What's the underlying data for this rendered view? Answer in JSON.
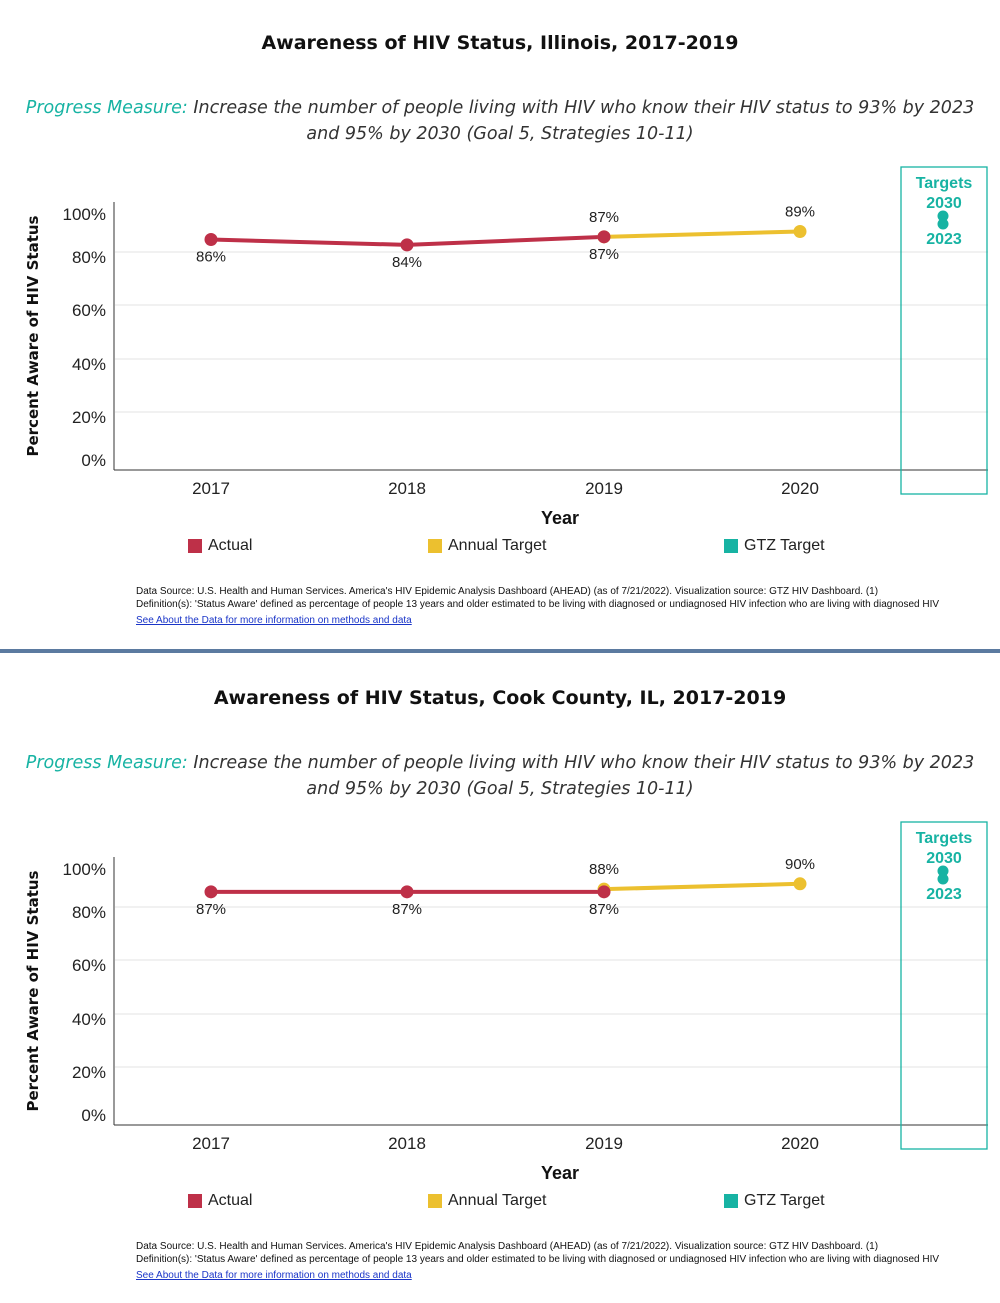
{
  "legend": [
    {
      "label": "Actual",
      "color": "#be3048"
    },
    {
      "label": "Annual Target",
      "color": "#ecc02f"
    },
    {
      "label": "GTZ Target",
      "color": "#17b3a3"
    }
  ],
  "progress_measure": {
    "label": "Progress Measure:",
    "text": "Increase the number of people living with HIV who know their HIV status to 93% by 2023 and 95% by 2030 (Goal 5, Strategies 10-11)"
  },
  "targets_box": {
    "title": "Targets",
    "label_2030": "2030",
    "label_2023": "2023"
  },
  "footnote": {
    "source": "Data Source: U.S. Health and Human Services. America's HIV Epidemic Analysis Dashboard (AHEAD) (as of 7/21/2022). Visualization source: GTZ HIV Dashboard. (1)",
    "definition": "Definition(s): 'Status Aware' defined as percentage of people 13 years and older estimated to be living with diagnosed or undiagnosed HIV infection who are living with diagnosed HIV",
    "link": "See About the Data for more information on methods and data"
  },
  "chart_data": [
    {
      "type": "line",
      "title": "Awareness of HIV Status, Illinois, 2017-2019",
      "xlabel": "Year",
      "ylabel": "Percent Aware of HIV Status",
      "categories": [
        "2017",
        "2018",
        "2019",
        "2020"
      ],
      "yticks": [
        "100%",
        "80%",
        "60%",
        "40%",
        "20%",
        "0%"
      ],
      "ylim": [
        0,
        100
      ],
      "grid": true,
      "legend_position": "bottom",
      "series": [
        {
          "name": "Actual",
          "color": "#be3048",
          "x": [
            "2017",
            "2018",
            "2019"
          ],
          "values": [
            86,
            84,
            87
          ],
          "labels": [
            "86%",
            "84%",
            "87%"
          ]
        },
        {
          "name": "Annual Target",
          "color": "#ecc02f",
          "x": [
            "2019",
            "2020"
          ],
          "values": [
            87,
            89
          ],
          "labels": [
            "87%",
            "89%"
          ]
        },
        {
          "name": "GTZ Target",
          "color": "#17b3a3",
          "x": [
            "2030",
            "2023"
          ],
          "values": [
            95,
            93
          ]
        }
      ]
    },
    {
      "type": "line",
      "title": "Awareness of HIV Status, Cook County, IL, 2017-2019",
      "xlabel": "Year",
      "ylabel": "Percent Aware of HIV Status",
      "categories": [
        "2017",
        "2018",
        "2019",
        "2020"
      ],
      "yticks": [
        "100%",
        "80%",
        "60%",
        "40%",
        "20%",
        "0%"
      ],
      "ylim": [
        0,
        100
      ],
      "grid": true,
      "legend_position": "bottom",
      "series": [
        {
          "name": "Actual",
          "color": "#be3048",
          "x": [
            "2017",
            "2018",
            "2019"
          ],
          "values": [
            87,
            87,
            87
          ],
          "labels": [
            "87%",
            "87%",
            "87%"
          ]
        },
        {
          "name": "Annual Target",
          "color": "#ecc02f",
          "x": [
            "2019",
            "2020"
          ],
          "values": [
            88,
            90
          ],
          "labels": [
            "88%",
            "90%"
          ]
        },
        {
          "name": "GTZ Target",
          "color": "#17b3a3",
          "x": [
            "2030",
            "2023"
          ],
          "values": [
            95,
            93
          ]
        }
      ]
    }
  ]
}
